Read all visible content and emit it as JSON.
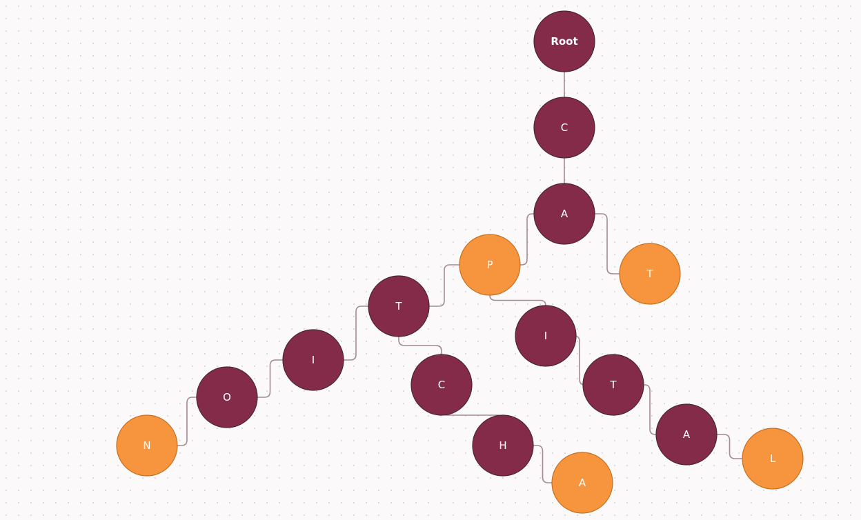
{
  "colors": {
    "node": "#842b49",
    "word_end": "#f7953f"
  },
  "nodes": [
    {
      "id": "root",
      "label": "Root",
      "kind": "root"
    },
    {
      "id": "c1",
      "label": "C",
      "kind": "node"
    },
    {
      "id": "a1",
      "label": "A",
      "kind": "node"
    },
    {
      "id": "t_cat",
      "label": "T",
      "kind": "word-end"
    },
    {
      "id": "p",
      "label": "P",
      "kind": "word-end"
    },
    {
      "id": "t_capt",
      "label": "T",
      "kind": "node"
    },
    {
      "id": "i_capti",
      "label": "I",
      "kind": "node"
    },
    {
      "id": "o",
      "label": "O",
      "kind": "node"
    },
    {
      "id": "n",
      "label": "N",
      "kind": "word-end"
    },
    {
      "id": "c_captc",
      "label": "C",
      "kind": "node"
    },
    {
      "id": "h",
      "label": "H",
      "kind": "node"
    },
    {
      "id": "a_captcha",
      "label": "A",
      "kind": "word-end"
    },
    {
      "id": "i_capi",
      "label": "I",
      "kind": "node"
    },
    {
      "id": "t_capit",
      "label": "T",
      "kind": "node"
    },
    {
      "id": "a_capita",
      "label": "A",
      "kind": "node"
    },
    {
      "id": "l",
      "label": "L",
      "kind": "word-end"
    }
  ],
  "edges": [
    [
      "root",
      "c1"
    ],
    [
      "c1",
      "a1"
    ],
    [
      "a1",
      "t_cat"
    ],
    [
      "a1",
      "p"
    ],
    [
      "p",
      "t_capt"
    ],
    [
      "t_capt",
      "i_capti"
    ],
    [
      "i_capti",
      "o"
    ],
    [
      "o",
      "n"
    ],
    [
      "t_capt",
      "c_captc"
    ],
    [
      "c_captc",
      "h"
    ],
    [
      "h",
      "a_captcha"
    ],
    [
      "p",
      "i_capi"
    ],
    [
      "i_capi",
      "t_capit"
    ],
    [
      "t_capit",
      "a_capita"
    ],
    [
      "a_capita",
      "l"
    ]
  ]
}
